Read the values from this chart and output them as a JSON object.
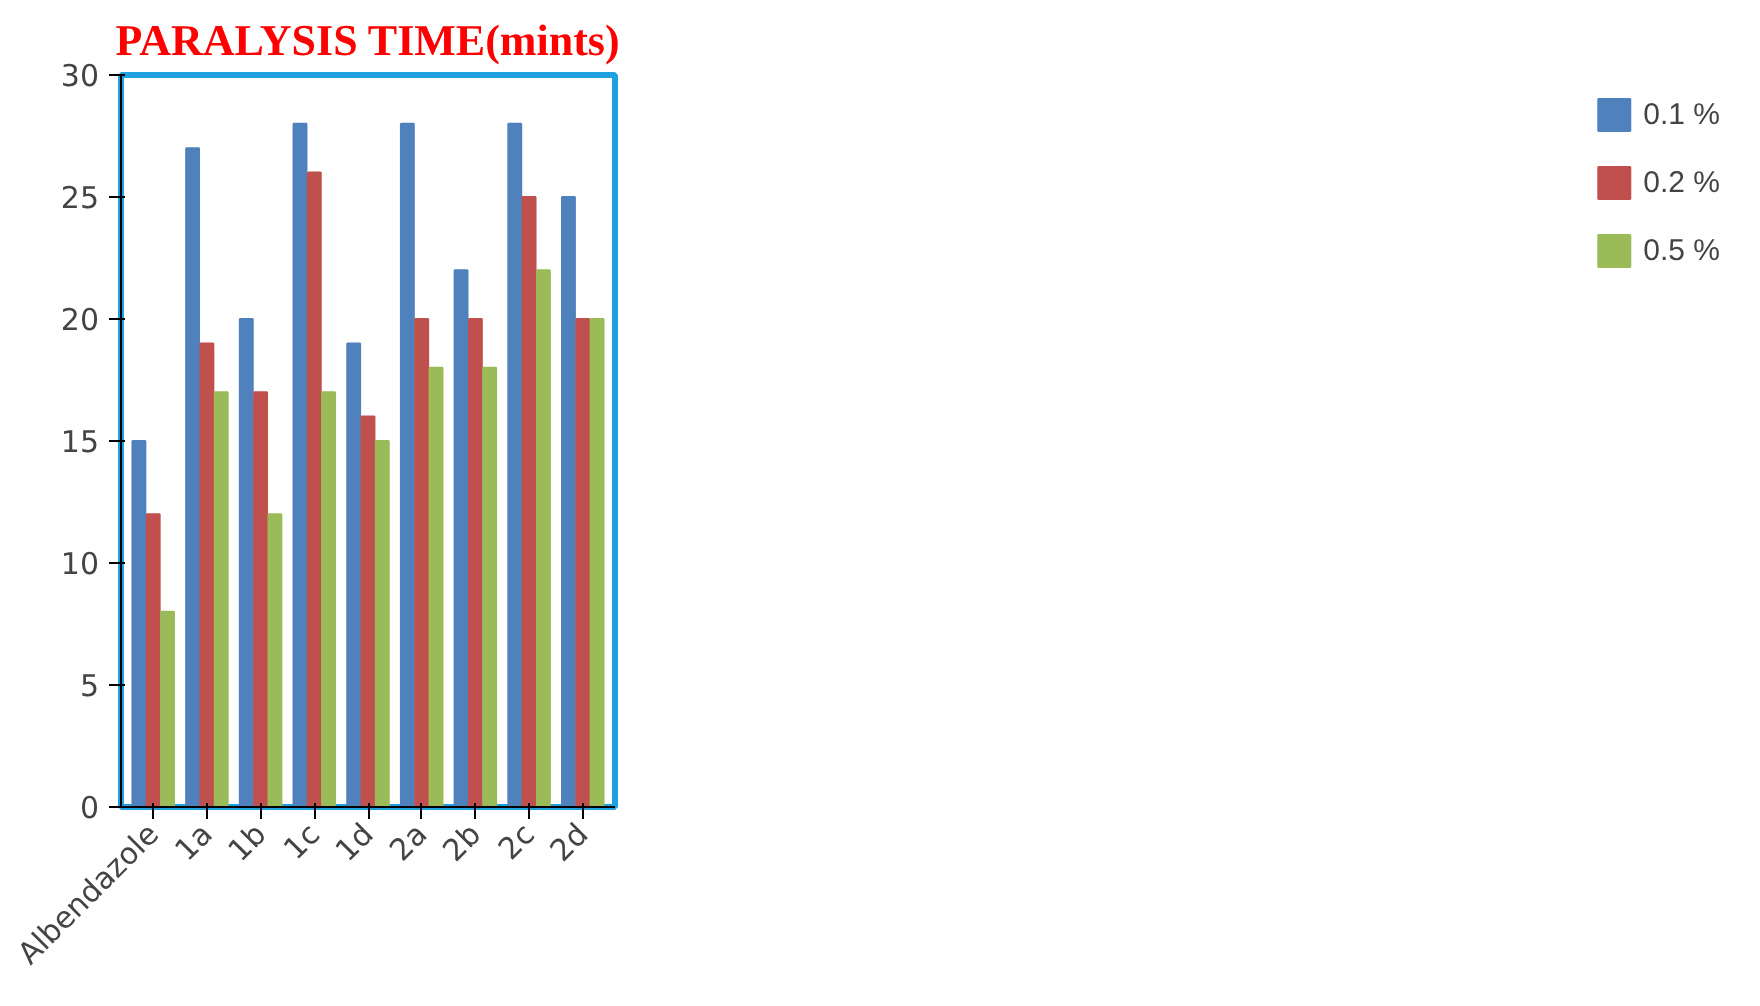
{
  "chart_data": {
    "type": "bar",
    "title": "PARALYSIS TIME(mints)",
    "categories": [
      "Albendazole",
      "1a",
      "1b",
      "1c",
      "1d",
      "2a",
      "2b",
      "2c",
      "2d"
    ],
    "series": [
      {
        "name": "0.1 %",
        "color": "#4f81bd",
        "values": [
          15,
          27,
          20,
          28,
          19,
          28,
          22,
          28,
          25
        ]
      },
      {
        "name": "0.2 %",
        "color": "#c0504d",
        "values": [
          12,
          19,
          17,
          26,
          16,
          20,
          20,
          25,
          20
        ]
      },
      {
        "name": "0.5 %",
        "color": "#9bbb59",
        "values": [
          8,
          17,
          12,
          17,
          15,
          18,
          18,
          22,
          20
        ]
      }
    ],
    "ylim": [
      0,
      30
    ],
    "yticks": [
      0,
      5,
      10,
      15,
      20,
      25,
      30
    ],
    "grid": false,
    "legend": "right"
  }
}
